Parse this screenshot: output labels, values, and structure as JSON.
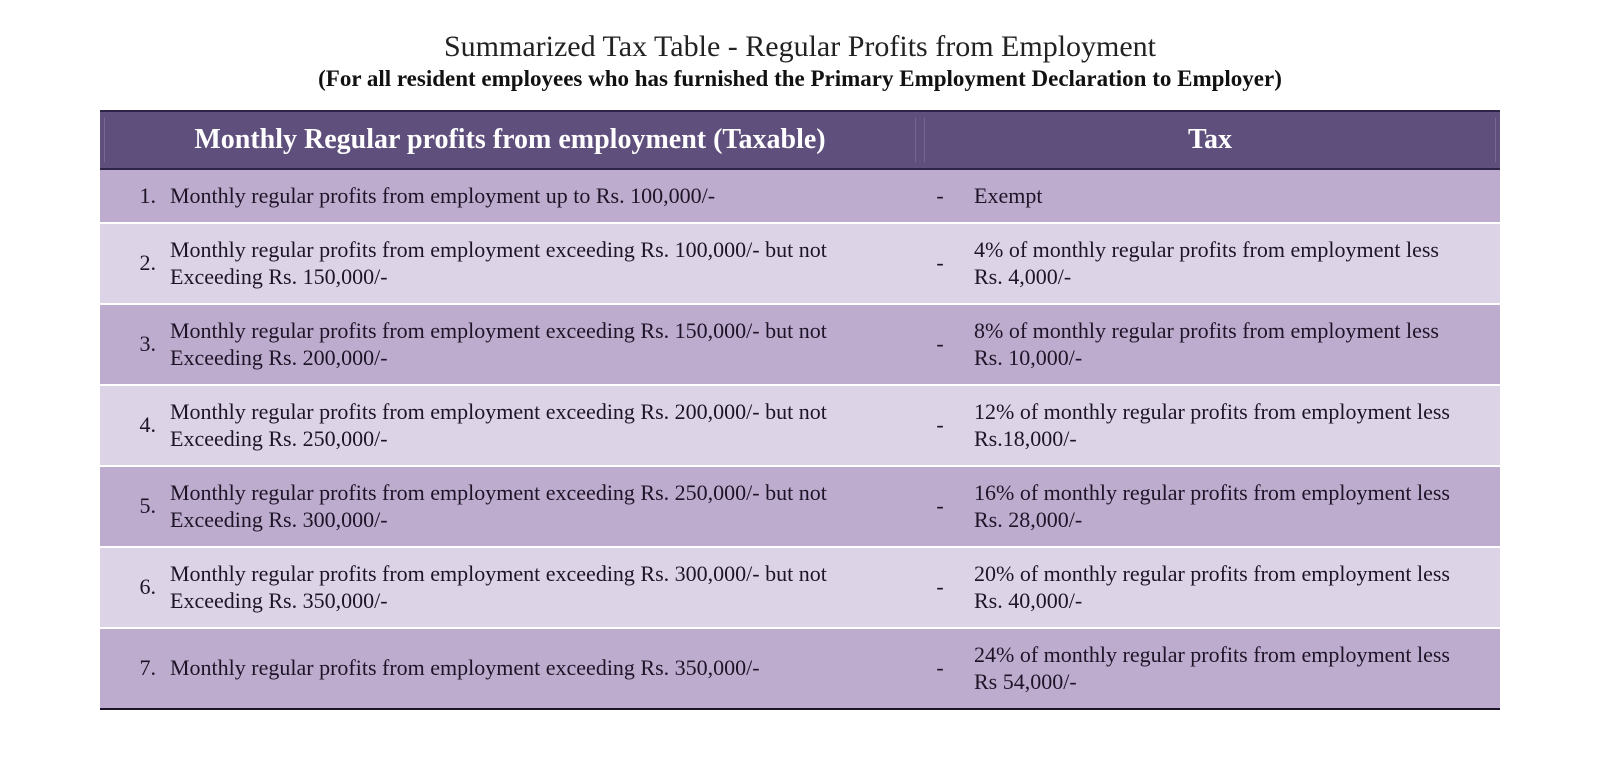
{
  "title": {
    "main": "Summarized Tax Table - Regular Profits from Employment",
    "sub": "(For all resident employees who has furnished the Primary Employment Declaration to Employer)"
  },
  "colors": {
    "header_bg": "#5e4f7d",
    "header_text": "#ffffff",
    "row_dark": "#bdacce",
    "row_light": "#dcd3e6",
    "body_text": "#1e1428",
    "rule": "#1e1428",
    "page_bg": "#ffffff"
  },
  "typography": {
    "title_main_pt": 30,
    "title_sub_pt": 23,
    "header_pt": 28,
    "body_pt": 22,
    "font_family": "Georgia / Times-style serif"
  },
  "table": {
    "type": "table",
    "columns": [
      {
        "label": "Monthly Regular profits from employment (Taxable)",
        "align": "center",
        "colspan_includes_number": true
      },
      {
        "label": "Tax",
        "align": "center"
      }
    ],
    "header_col1": "Monthly Regular profits from employment (Taxable)",
    "header_col2": "Tax",
    "rows": [
      {
        "n": "1.",
        "desc": "Monthly regular profits from employment  up to Rs. 100,000/-",
        "dash": "-",
        "tax": "Exempt"
      },
      {
        "n": "2.",
        "desc": "Monthly regular profits from employment  exceeding Rs. 100,000/- but not Exceeding Rs. 150,000/-",
        "dash": "-",
        "tax": "4% of monthly regular profits from employment  less Rs. 4,000/-"
      },
      {
        "n": "3.",
        "desc": "Monthly regular profits from employment  exceeding Rs. 150,000/- but not Exceeding Rs. 200,000/-",
        "dash": "-",
        "tax": "8% of monthly regular profits from employment  less Rs. 10,000/-"
      },
      {
        "n": "4.",
        "desc": "Monthly regular profits from employment  exceeding Rs. 200,000/- but not Exceeding Rs. 250,000/-",
        "dash": "-",
        "tax": "12% of monthly regular profits from employment  less Rs.18,000/-"
      },
      {
        "n": "5.",
        "desc": "Monthly regular profits from employment  exceeding Rs. 250,000/- but not Exceeding Rs. 300,000/-",
        "dash": "-",
        "tax": "16% of monthly regular profits from employment  less Rs. 28,000/-"
      },
      {
        "n": "6.",
        "desc": "Monthly regular profits from employment  exceeding Rs. 300,000/- but not Exceeding Rs. 350,000/-",
        "dash": "-",
        "tax": "20% of monthly regular profits from employment  less Rs. 40,000/-"
      },
      {
        "n": "7.",
        "desc": "Monthly regular profits from employment  exceeding Rs. 350,000/-",
        "dash": "-",
        "tax": "24% of monthly regular profits from employment  less Rs 54,000/-"
      }
    ],
    "row_stripe_pattern": [
      "row-a",
      "row-b",
      "row-a",
      "row-b",
      "row-a",
      "row-b",
      "row-a"
    ]
  }
}
